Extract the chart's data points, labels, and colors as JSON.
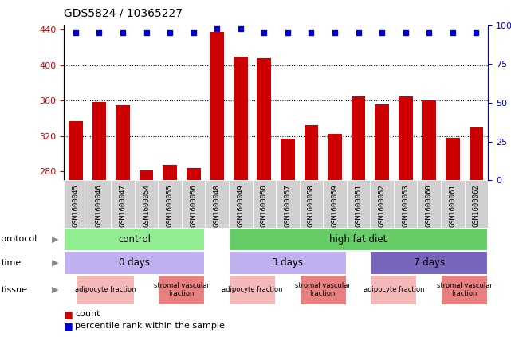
{
  "title": "GDS5824 / 10365227",
  "samples": [
    "GSM1600045",
    "GSM1600046",
    "GSM1600047",
    "GSM1600054",
    "GSM1600055",
    "GSM1600056",
    "GSM1600048",
    "GSM1600049",
    "GSM1600050",
    "GSM1600057",
    "GSM1600058",
    "GSM1600059",
    "GSM1600051",
    "GSM1600052",
    "GSM1600053",
    "GSM1600060",
    "GSM1600061",
    "GSM1600062"
  ],
  "counts": [
    337,
    358,
    355,
    281,
    287,
    284,
    438,
    410,
    408,
    317,
    332,
    322,
    365,
    356,
    365,
    360,
    318,
    330
  ],
  "percentiles": [
    95,
    95,
    95,
    95,
    95,
    95,
    98,
    98,
    95,
    95,
    95,
    95,
    95,
    95,
    95,
    95,
    95,
    95
  ],
  "ylim_left": [
    270,
    445
  ],
  "ylim_right": [
    0,
    100
  ],
  "yticks_left": [
    280,
    320,
    360,
    400,
    440
  ],
  "yticks_right": [
    0,
    25,
    50,
    75,
    100
  ],
  "bar_color": "#cc0000",
  "dot_color": "#0000cc",
  "bar_width": 0.6,
  "protocol_color_control": "#90ee90",
  "protocol_color_hfd": "#66cc66",
  "time_color_light": "#c0b0f0",
  "time_color_dark": "#7766bb",
  "tissue_color_adipo": "#f5b8b8",
  "tissue_color_stromal": "#e88080",
  "xtick_bg": "#d0d0d0",
  "label_color": "#888888"
}
